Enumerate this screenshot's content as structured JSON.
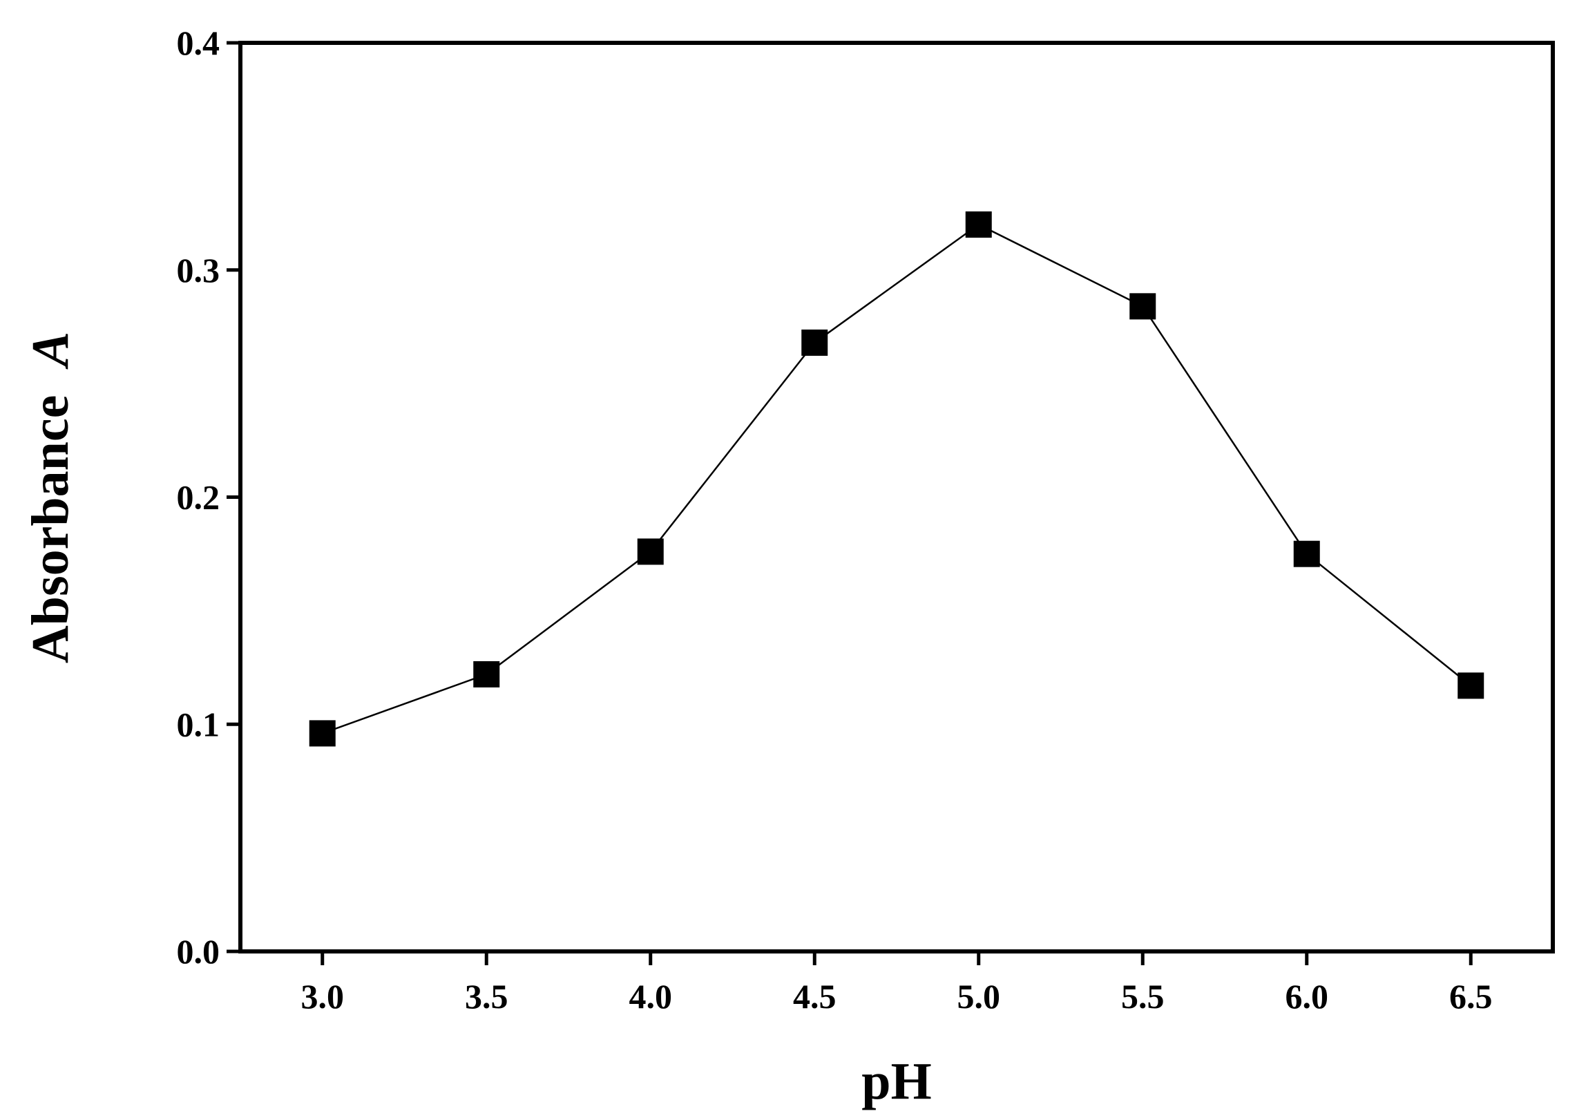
{
  "chart_data": {
    "type": "line",
    "title": "",
    "xlabel": "pH",
    "ylabel_main": "Absorbance",
    "ylabel_var": "A",
    "xlim": [
      2.75,
      6.75
    ],
    "ylim": [
      0.0,
      0.4
    ],
    "x_ticks": [
      3.0,
      3.5,
      4.0,
      4.5,
      5.0,
      5.5,
      6.0,
      6.5
    ],
    "x_tick_labels": [
      "3.0",
      "3.5",
      "4.0",
      "4.5",
      "5.0",
      "5.5",
      "6.0",
      "6.5"
    ],
    "y_ticks": [
      0.0,
      0.1,
      0.2,
      0.3,
      0.4
    ],
    "y_tick_labels": [
      "0.0",
      "0.1",
      "0.2",
      "0.3",
      "0.4"
    ],
    "grid": false,
    "legend": "none",
    "marker": "square",
    "series": [
      {
        "color": "#000000",
        "x": [
          3.0,
          3.5,
          4.0,
          4.5,
          5.0,
          5.5,
          6.0,
          6.5
        ],
        "y": [
          0.096,
          0.122,
          0.176,
          0.268,
          0.32,
          0.284,
          0.175,
          0.117
        ]
      }
    ]
  }
}
